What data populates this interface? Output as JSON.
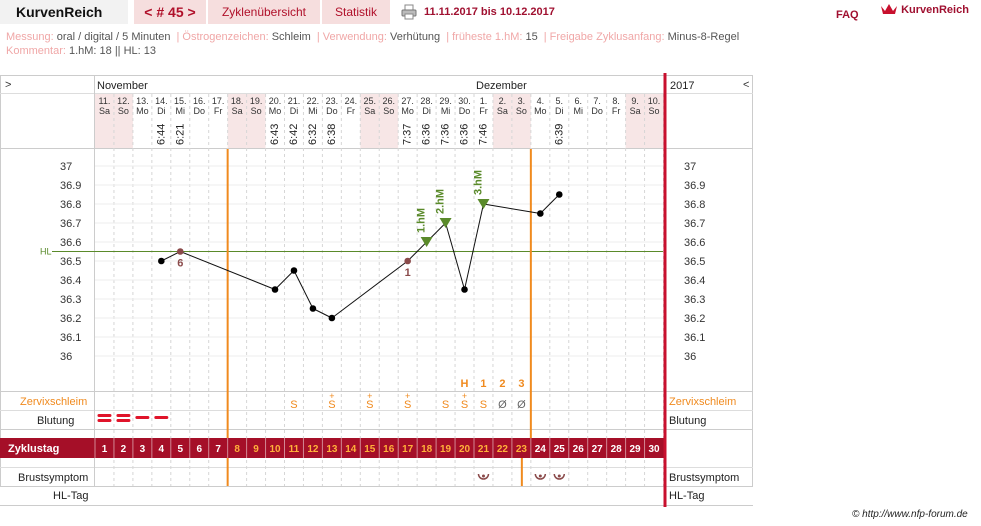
{
  "header": {
    "brand": "KurvenReich",
    "cycle_nav": "< # 45 >",
    "tab_overview": "Zyklenübersicht",
    "tab_stats": "Statistik",
    "print_icon": "printer-icon",
    "period": "11.11.2017 bis 10.12.2017",
    "faq": "FAQ",
    "logo_icon": "crown-icon",
    "logo_text": "KurvenReich"
  },
  "info": {
    "row1": [
      {
        "label": "Messung:",
        "value": "oral / digital / 5 Minuten"
      },
      {
        "label": "Östrogenzeichen:",
        "value": "Schleim"
      },
      {
        "label": "Verwendung:",
        "value": "Verhütung"
      },
      {
        "label": "früheste 1.hM:",
        "value": "15"
      },
      {
        "label": "Freigabe Zyklusanfang:",
        "value": "Minus-8-Regel"
      }
    ],
    "row2": [
      {
        "label": "Kommentar:",
        "value": "1.hM: 18 || HL: 13"
      }
    ]
  },
  "chart_data": {
    "type": "line",
    "year": "2017",
    "nav_left": ">",
    "nav_right": "<",
    "months": [
      {
        "label": "November",
        "start": 0
      },
      {
        "label": "Dezember",
        "start": 20
      }
    ],
    "dates": [
      "11.",
      "12.",
      "13.",
      "14.",
      "15.",
      "16.",
      "17.",
      "18.",
      "19.",
      "20.",
      "21.",
      "22.",
      "23.",
      "24.",
      "25.",
      "26.",
      "27.",
      "28.",
      "29.",
      "30.",
      "1.",
      "2.",
      "3.",
      "4.",
      "5.",
      "6.",
      "7.",
      "8.",
      "9.",
      "10."
    ],
    "weekdays": [
      "Sa",
      "So",
      "Mo",
      "Di",
      "Mi",
      "Do",
      "Fr",
      "Sa",
      "So",
      "Mo",
      "Di",
      "Mi",
      "Do",
      "Fr",
      "Sa",
      "So",
      "Mo",
      "Di",
      "Mi",
      "Do",
      "Fr",
      "Sa",
      "So",
      "Mo",
      "Di",
      "Mi",
      "Do",
      "Fr",
      "Sa",
      "So"
    ],
    "times": [
      null,
      null,
      null,
      "6:44",
      "6:21",
      null,
      null,
      null,
      null,
      "6:43",
      "6:42",
      "6:32",
      "6:38",
      null,
      null,
      null,
      "7:37",
      "6:36",
      "7:36",
      "6:36",
      "7:46",
      null,
      null,
      null,
      "6:39",
      null,
      null,
      null,
      null,
      null
    ],
    "temps": [
      null,
      null,
      null,
      36.5,
      36.55,
      null,
      null,
      null,
      null,
      36.35,
      36.45,
      36.25,
      36.2,
      null,
      null,
      null,
      36.5,
      36.6,
      36.7,
      36.35,
      36.8,
      null,
      null,
      36.75,
      36.85,
      null,
      null,
      null,
      null,
      null
    ],
    "excluded_points": [
      {
        "day": 5,
        "label": "6"
      },
      {
        "day": 17,
        "label": "1"
      }
    ],
    "high_markers": [
      {
        "day": 18,
        "label": "1.hM"
      },
      {
        "day": 19,
        "label": "2.hM"
      },
      {
        "day": 21,
        "label": "3.hM"
      }
    ],
    "hl_label": "HL",
    "hl_value": 36.55,
    "y_ticks": [
      37,
      36.9,
      36.8,
      36.7,
      36.6,
      36.5,
      36.4,
      36.3,
      36.2,
      36.1,
      36
    ],
    "ylim": [
      36.0,
      37.0
    ],
    "cycle_start_line_day": 8,
    "infertile_from_day": 24,
    "weekend_days": [
      1,
      2,
      8,
      9,
      15,
      16,
      22,
      23,
      29,
      30
    ],
    "zervix_label": "Zervixschleim",
    "zervix": [
      {
        "day": 11,
        "sym": "S"
      },
      {
        "day": 13,
        "sym": "S+"
      },
      {
        "day": 15,
        "sym": "S+"
      },
      {
        "day": 17,
        "sym": "S+"
      },
      {
        "day": 19,
        "sym": "S"
      },
      {
        "day": 20,
        "sym": "S+"
      },
      {
        "day": 21,
        "sym": "S"
      },
      {
        "day": 22,
        "sym": "Ø"
      },
      {
        "day": 23,
        "sym": "Ø"
      }
    ],
    "zervix_peak": [
      {
        "day": 20,
        "label": "H"
      },
      {
        "day": 21,
        "label": "1"
      },
      {
        "day": 22,
        "label": "2"
      },
      {
        "day": 23,
        "label": "3"
      }
    ],
    "blutung_label": "Blutung",
    "blutung": [
      {
        "day": 1,
        "level": "strong"
      },
      {
        "day": 2,
        "level": "strong"
      },
      {
        "day": 3,
        "level": "medium"
      },
      {
        "day": 4,
        "level": "weak"
      }
    ],
    "zyklustag_label": "Zyklustag",
    "cycle_days": [
      "1",
      "2",
      "3",
      "4",
      "5",
      "6",
      "7",
      "8",
      "9",
      "10",
      "11",
      "12",
      "13",
      "14",
      "15",
      "16",
      "17",
      "18",
      "19",
      "20",
      "21",
      "22",
      "23",
      "24",
      "25",
      "26",
      "27",
      "28",
      "29",
      "30"
    ],
    "brust_label": "Brustsymptom",
    "brust_days": [
      21,
      24,
      25
    ],
    "hltag_label": "HL-Tag",
    "colors": {
      "accent": "#a50f28",
      "orange": "#f08a1e",
      "hl_line": "#5a8a2a",
      "weekend": "#f7e6e6",
      "marker": "#5a8a2a"
    }
  },
  "footer": {
    "credit": "© http://www.nfp-forum.de"
  }
}
